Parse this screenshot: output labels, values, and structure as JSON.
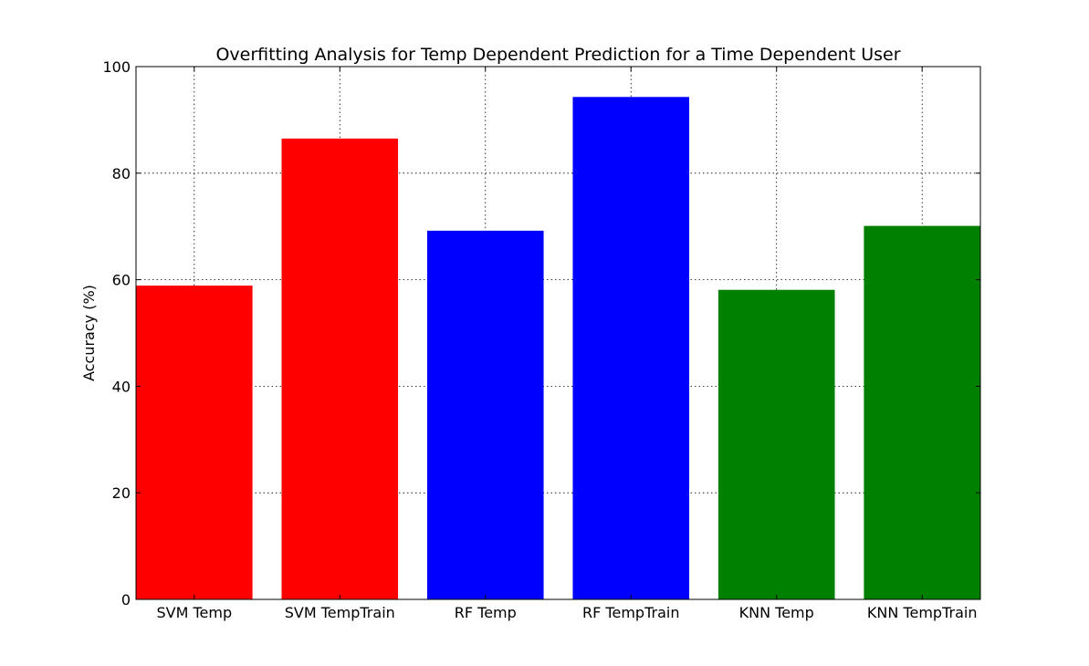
{
  "chart_data": {
    "type": "bar",
    "title": "Overfitting Analysis for Temp Dependent Prediction for a Time Dependent User",
    "xlabel": "",
    "ylabel": "Accuracy (%)",
    "categories": [
      "SVM Temp",
      "SVM TempTrain",
      "RF Temp",
      "RF TempTrain",
      "KNN Temp",
      "KNN TempTrain"
    ],
    "values": [
      58.9,
      86.5,
      69.2,
      94.3,
      58.1,
      70.1
    ],
    "bar_colors": [
      "#ff0000",
      "#ff0000",
      "#0000ff",
      "#0000ff",
      "#008000",
      "#008000"
    ],
    "ylim": [
      0,
      100
    ],
    "yticks": [
      0,
      20,
      40,
      60,
      80,
      100
    ],
    "grid": true,
    "grid_style": "dotted",
    "legend": "none"
  }
}
